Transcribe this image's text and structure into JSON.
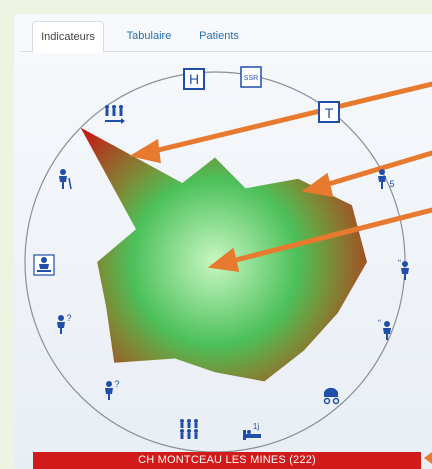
{
  "tabs": [
    {
      "label": "Indicateurs",
      "active": true
    },
    {
      "label": "Tabulaire",
      "active": false
    },
    {
      "label": "Patients",
      "active": false
    }
  ],
  "radar": {
    "axes": 16,
    "values": [
      0.55,
      0.42,
      0.62,
      0.78,
      0.8,
      0.7,
      0.66,
      0.68,
      0.58,
      0.55,
      0.75,
      0.62,
      0.62,
      0.45,
      1.0,
      0.45
    ],
    "colors": {
      "center": "#b8f5b0",
      "mid": "#3fb54a",
      "edge": "#c41a14",
      "circle": "#8a8f96",
      "arrow": "#e87a2f"
    }
  },
  "icons": [
    {
      "name": "hospital-icon",
      "text": "H"
    },
    {
      "name": "ssr-icon",
      "text": "SSR"
    },
    {
      "name": "elevator-icon",
      "text": "T"
    },
    {
      "name": "person-5-icon",
      "text": "5"
    },
    {
      "name": "person-quote-icon",
      "text": "“"
    },
    {
      "name": "person-quote2-icon",
      "text": "“"
    },
    {
      "name": "stroller-icon",
      "text": ""
    },
    {
      "name": "bed-1j-icon",
      "text": "1j"
    },
    {
      "name": "group-people-icon",
      "text": ""
    },
    {
      "name": "person-question-icon",
      "text": "?"
    },
    {
      "name": "person-question2-icon",
      "text": "?"
    },
    {
      "name": "person-desk-icon",
      "text": ""
    },
    {
      "name": "elderly-person-icon",
      "text": ""
    },
    {
      "name": "people-arrow-icon",
      "text": ""
    }
  ],
  "footer": {
    "label": "CH MONTCEAU LES MINES (222)"
  }
}
